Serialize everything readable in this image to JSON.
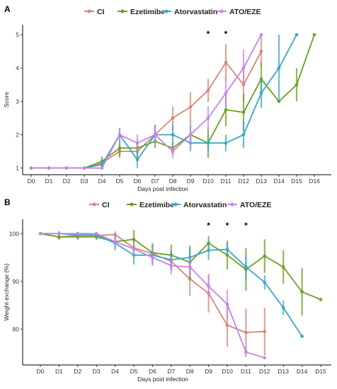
{
  "chart_data": [
    {
      "panel": "A",
      "type": "line",
      "xlabel": "Days post infection",
      "ylabel": "Score",
      "categories": [
        "D0",
        "D1",
        "D2",
        "D3",
        "D4",
        "D5",
        "D6",
        "D7",
        "D8",
        "D9",
        "D10",
        "D11",
        "D12",
        "D13",
        "D14",
        "D15",
        "D16"
      ],
      "ylim": [
        0.8,
        5.3
      ],
      "yticks": [
        1,
        2,
        3,
        4,
        5
      ],
      "grid": false,
      "legend_position": "top",
      "significance": [
        {
          "x": "D10",
          "label": "*"
        },
        {
          "x": "D11",
          "label": "*"
        }
      ],
      "series": [
        {
          "name": "CI",
          "color": "#D18975",
          "values": [
            1,
            1,
            1,
            1,
            1.15,
            1.5,
            1.5,
            2.0,
            2.5,
            2.83,
            3.33,
            4.17,
            3.5,
            4.5,
            null,
            null,
            null
          ],
          "errors": [
            0,
            0,
            0,
            0,
            0.1,
            0.2,
            0.2,
            0.3,
            0.35,
            0.45,
            0.35,
            0.55,
            0.5,
            0.45,
            null,
            null,
            null
          ]
        },
        {
          "name": "Ezetimibe",
          "color": "#6AA121",
          "values": [
            1,
            1,
            1,
            1,
            1.2,
            1.6,
            1.6,
            1.8,
            1.6,
            2.0,
            1.75,
            2.75,
            2.67,
            3.67,
            3.0,
            3.5,
            5.0
          ],
          "errors": [
            0,
            0,
            0,
            0,
            0.15,
            0.25,
            0.25,
            0.2,
            0.2,
            0.3,
            0.45,
            0.5,
            0.55,
            0.5,
            0,
            0.5,
            0
          ]
        },
        {
          "name": "Atorvastatin",
          "color": "#3AA7C4",
          "values": [
            1,
            1,
            1,
            1,
            1.1,
            2.0,
            1.25,
            2.0,
            2.0,
            1.75,
            1.75,
            1.75,
            2.0,
            3.25,
            4.0,
            5.0,
            null
          ],
          "errors": [
            0,
            0,
            0,
            0,
            0.1,
            0.2,
            0.25,
            0.3,
            0.3,
            0.25,
            0.25,
            0.25,
            0.4,
            0.45,
            1.0,
            0,
            null
          ]
        },
        {
          "name": "ATO/EZE",
          "color": "#C783E8",
          "values": [
            1,
            1,
            1,
            1,
            1,
            2.0,
            1.75,
            2.0,
            1.5,
            2.0,
            2.5,
            3.25,
            4.0,
            5.0,
            null,
            null,
            null
          ],
          "errors": [
            0,
            0,
            0,
            0,
            0,
            0.2,
            0.25,
            0.3,
            0.2,
            0.4,
            0.35,
            0.45,
            0.55,
            0,
            null,
            null,
            null
          ]
        }
      ]
    },
    {
      "panel": "B",
      "type": "line",
      "xlabel": "Days post infection",
      "ylabel": "Weight exchange (%)",
      "categories": [
        "D0",
        "D1",
        "D2",
        "D3",
        "D4",
        "D5",
        "D6",
        "D7",
        "D8",
        "D9",
        "D10",
        "D11",
        "D12",
        "D13",
        "D14",
        "D15"
      ],
      "ylim": [
        72.5,
        103
      ],
      "yticks": [
        80,
        90,
        100
      ],
      "grid": false,
      "legend_position": "top",
      "significance": [
        {
          "x": "D9",
          "label": "*"
        },
        {
          "x": "D10",
          "label": "*"
        },
        {
          "x": "D11",
          "label": "*"
        }
      ],
      "series": [
        {
          "name": "CI",
          "color": "#D18975",
          "values": [
            100,
            99.3,
            99.6,
            99.6,
            99.8,
            97.0,
            95.8,
            94.2,
            90.5,
            87.5,
            80.8,
            79.3,
            79.5,
            null,
            null,
            null
          ],
          "errors": [
            0,
            0.5,
            0.5,
            0.6,
            0.7,
            1.6,
            1.8,
            2.0,
            3.5,
            4.0,
            4.5,
            5.0,
            5.0,
            null,
            null,
            null
          ]
        },
        {
          "name": "Ezetimibe",
          "color": "#6AA121",
          "values": [
            100,
            99.3,
            99.3,
            99.3,
            98.3,
            98.8,
            96.0,
            95.5,
            94.0,
            98.0,
            95.5,
            92.5,
            95.3,
            93.0,
            87.8,
            86.2
          ],
          "errors": [
            0,
            0.6,
            0.6,
            0.6,
            1.2,
            2.0,
            2.0,
            2.2,
            3.5,
            1.5,
            3.0,
            4.5,
            3.5,
            3.5,
            5.0,
            0
          ]
        },
        {
          "name": "Atorvastatin",
          "color": "#3AA7C4",
          "values": [
            100,
            100,
            99.7,
            99.7,
            98.0,
            95.5,
            95.5,
            94.5,
            95.0,
            96.5,
            96.7,
            93.0,
            89.8,
            84.5,
            78.5,
            null
          ],
          "errors": [
            0,
            0.5,
            0.5,
            0.6,
            1.5,
            2.0,
            2.0,
            2.0,
            2.0,
            2.0,
            1.5,
            2.5,
            1.5,
            1.5,
            0,
            null
          ]
        },
        {
          "name": "ATO/EZE",
          "color": "#C783E8",
          "values": [
            100,
            100,
            100,
            100,
            98.3,
            96.8,
            95.0,
            93.3,
            93.0,
            89.0,
            85.2,
            75.2,
            74.0,
            null,
            null,
            null
          ],
          "errors": [
            0,
            0.3,
            0.3,
            0.3,
            1.3,
            1.5,
            1.8,
            1.8,
            2.0,
            2.5,
            3.0,
            1.0,
            0,
            null,
            null,
            null
          ]
        }
      ]
    }
  ]
}
